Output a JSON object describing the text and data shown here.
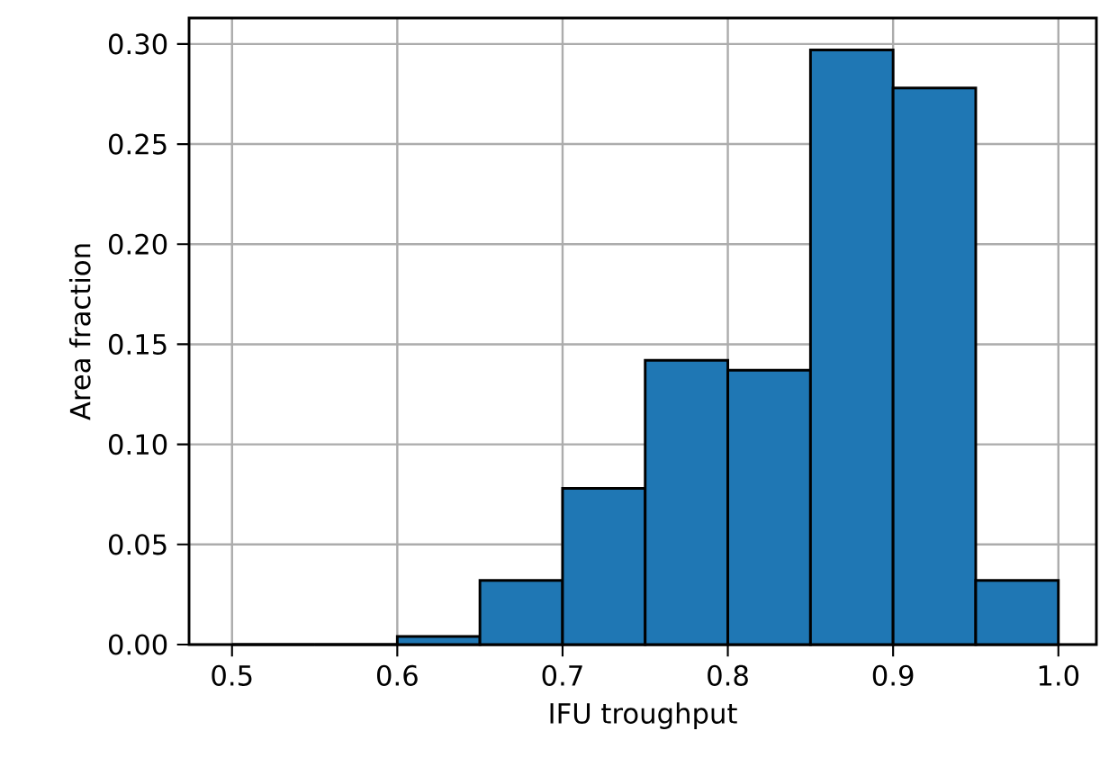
{
  "chart_data": {
    "type": "histogram",
    "xlabel": "IFU troughput",
    "ylabel": "Area fraction",
    "bins": [
      0.5,
      0.55,
      0.6,
      0.65,
      0.7,
      0.75,
      0.8,
      0.85,
      0.9,
      0.95,
      1.0
    ],
    "values": [
      0,
      0,
      0.004,
      0.032,
      0.078,
      0.142,
      0.137,
      0.297,
      0.278,
      0.032
    ],
    "color": "#1f77b4",
    "xlim": [
      0.474,
      1.023
    ],
    "ylim": [
      0,
      0.313
    ],
    "xticks": [
      0.5,
      0.6,
      0.7,
      0.8,
      0.9,
      {
        "value": 1,
        "label": "1.0"
      }
    ],
    "yticks": [
      {
        "value": 0,
        "label": "0.00"
      },
      {
        "value": 0.05,
        "label": "0.05"
      },
      {
        "value": 0.1,
        "label": "0.10"
      },
      {
        "value": 0.15,
        "label": "0.15"
      },
      {
        "value": 0.2,
        "label": "0.20"
      },
      {
        "value": 0.25,
        "label": "0.25"
      },
      {
        "value": 0.3,
        "label": "0.30"
      }
    ],
    "grid": true
  }
}
